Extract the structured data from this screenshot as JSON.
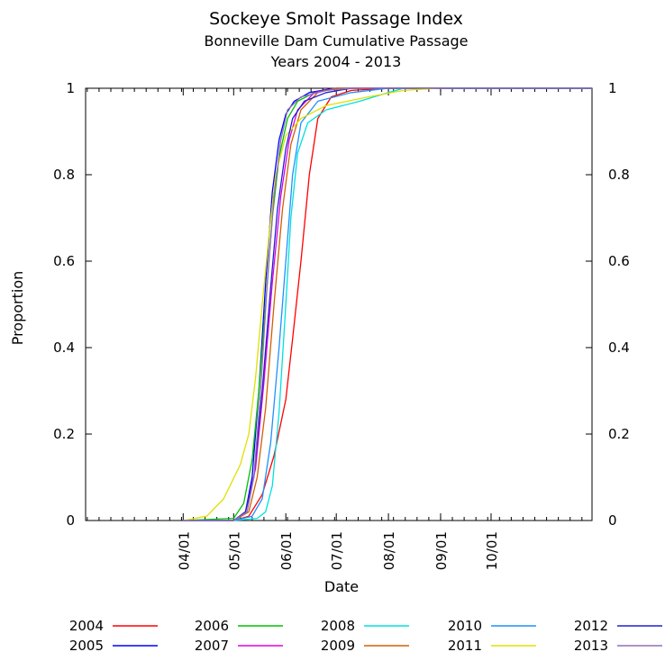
{
  "chart_data": {
    "type": "line",
    "title": "Sockeye Smolt Passage Index",
    "subtitle": "Bonneville Dam Cumulative Passage",
    "subtitle2": "Years 2004 - 2013",
    "xlabel": "Date",
    "ylabel": "Proportion",
    "x_unit": "date",
    "xlim": [
      "02-02",
      "11-30"
    ],
    "ylim": [
      0,
      1
    ],
    "x_ticks": [
      {
        "date": "04-01",
        "label": "04/01"
      },
      {
        "date": "05-01",
        "label": "05/01"
      },
      {
        "date": "06-01",
        "label": "06/01"
      },
      {
        "date": "07-01",
        "label": "07/01"
      },
      {
        "date": "08-01",
        "label": "08/01"
      },
      {
        "date": "09-01",
        "label": "09/01"
      },
      {
        "date": "10-01",
        "label": "10/01"
      }
    ],
    "y_ticks": [
      0,
      0.2,
      0.4,
      0.6,
      0.8,
      1
    ],
    "y_tick_labels": [
      "0",
      "0.2",
      "0.4",
      "0.6",
      "0.8",
      "1"
    ],
    "right_axis_ticks": true,
    "grid": false,
    "legend_position": "bottom",
    "series": [
      {
        "name": "2004",
        "color": "#ff0000",
        "points": [
          [
            "04-01",
            0
          ],
          [
            "05-01",
            0
          ],
          [
            "05-10",
            0.01
          ],
          [
            "05-18",
            0.06
          ],
          [
            "05-25",
            0.15
          ],
          [
            "06-01",
            0.28
          ],
          [
            "06-05",
            0.42
          ],
          [
            "06-10",
            0.6
          ],
          [
            "06-15",
            0.8
          ],
          [
            "06-20",
            0.93
          ],
          [
            "06-28",
            0.98
          ],
          [
            "07-10",
            0.995
          ],
          [
            "08-01",
            1
          ],
          [
            "11-30",
            1
          ]
        ]
      },
      {
        "name": "2005",
        "color": "#0000ff",
        "points": [
          [
            "04-01",
            0
          ],
          [
            "05-01",
            0
          ],
          [
            "05-08",
            0.02
          ],
          [
            "05-12",
            0.1
          ],
          [
            "05-16",
            0.3
          ],
          [
            "05-20",
            0.55
          ],
          [
            "05-24",
            0.76
          ],
          [
            "05-28",
            0.88
          ],
          [
            "06-01",
            0.94
          ],
          [
            "06-06",
            0.97
          ],
          [
            "06-15",
            0.99
          ],
          [
            "06-30",
            1
          ],
          [
            "11-30",
            1
          ]
        ]
      },
      {
        "name": "2006",
        "color": "#00c000",
        "points": [
          [
            "04-01",
            0
          ],
          [
            "05-01",
            0.005
          ],
          [
            "05-07",
            0.04
          ],
          [
            "05-12",
            0.14
          ],
          [
            "05-16",
            0.3
          ],
          [
            "05-20",
            0.5
          ],
          [
            "05-24",
            0.7
          ],
          [
            "05-28",
            0.84
          ],
          [
            "06-02",
            0.93
          ],
          [
            "06-08",
            0.97
          ],
          [
            "06-18",
            0.99
          ],
          [
            "07-01",
            1
          ],
          [
            "11-30",
            1
          ]
        ]
      },
      {
        "name": "2007",
        "color": "#e000e0",
        "points": [
          [
            "04-01",
            0
          ],
          [
            "05-01",
            0
          ],
          [
            "05-08",
            0.02
          ],
          [
            "05-14",
            0.12
          ],
          [
            "05-19",
            0.32
          ],
          [
            "05-24",
            0.55
          ],
          [
            "05-29",
            0.75
          ],
          [
            "06-03",
            0.88
          ],
          [
            "06-08",
            0.95
          ],
          [
            "06-18",
            0.99
          ],
          [
            "07-01",
            1
          ],
          [
            "11-30",
            1
          ]
        ]
      },
      {
        "name": "2008",
        "color": "#00e0e0",
        "points": [
          [
            "04-01",
            0
          ],
          [
            "05-01",
            0
          ],
          [
            "05-15",
            0.005
          ],
          [
            "05-20",
            0.02
          ],
          [
            "05-24",
            0.08
          ],
          [
            "05-28",
            0.25
          ],
          [
            "06-01",
            0.5
          ],
          [
            "06-04",
            0.7
          ],
          [
            "06-08",
            0.85
          ],
          [
            "06-14",
            0.92
          ],
          [
            "06-25",
            0.95
          ],
          [
            "07-15",
            0.97
          ],
          [
            "08-01",
            0.99
          ],
          [
            "08-10",
            1
          ],
          [
            "11-30",
            1
          ]
        ]
      },
      {
        "name": "2009",
        "color": "#d06000",
        "points": [
          [
            "04-01",
            0
          ],
          [
            "05-01",
            0
          ],
          [
            "05-10",
            0.02
          ],
          [
            "05-15",
            0.1
          ],
          [
            "05-20",
            0.26
          ],
          [
            "05-25",
            0.5
          ],
          [
            "05-30",
            0.72
          ],
          [
            "06-04",
            0.87
          ],
          [
            "06-10",
            0.95
          ],
          [
            "06-20",
            0.99
          ],
          [
            "07-01",
            1
          ],
          [
            "11-30",
            1
          ]
        ]
      },
      {
        "name": "2010",
        "color": "#1e90ff",
        "points": [
          [
            "04-01",
            0
          ],
          [
            "05-01",
            0
          ],
          [
            "05-12",
            0.01
          ],
          [
            "05-18",
            0.05
          ],
          [
            "05-23",
            0.18
          ],
          [
            "05-28",
            0.4
          ],
          [
            "06-01",
            0.6
          ],
          [
            "06-05",
            0.8
          ],
          [
            "06-10",
            0.92
          ],
          [
            "06-20",
            0.97
          ],
          [
            "07-10",
            0.99
          ],
          [
            "08-01",
            1
          ],
          [
            "11-30",
            1
          ]
        ]
      },
      {
        "name": "2011",
        "color": "#e0e000",
        "points": [
          [
            "04-01",
            0
          ],
          [
            "04-15",
            0.01
          ],
          [
            "04-25",
            0.05
          ],
          [
            "05-05",
            0.13
          ],
          [
            "05-10",
            0.2
          ],
          [
            "05-14",
            0.33
          ],
          [
            "05-18",
            0.5
          ],
          [
            "05-22",
            0.66
          ],
          [
            "05-26",
            0.8
          ],
          [
            "06-01",
            0.89
          ],
          [
            "06-10",
            0.93
          ],
          [
            "06-25",
            0.96
          ],
          [
            "07-20",
            0.98
          ],
          [
            "08-10",
            0.995
          ],
          [
            "08-31",
            1
          ]
        ]
      },
      {
        "name": "2012",
        "color": "#2020d0",
        "points": [
          [
            "04-01",
            0
          ],
          [
            "05-01",
            0
          ],
          [
            "05-08",
            0.02
          ],
          [
            "05-13",
            0.1
          ],
          [
            "05-18",
            0.3
          ],
          [
            "05-23",
            0.54
          ],
          [
            "05-27",
            0.72
          ],
          [
            "06-01",
            0.86
          ],
          [
            "06-05",
            0.93
          ],
          [
            "06-12",
            0.97
          ],
          [
            "06-25",
            0.99
          ],
          [
            "07-10",
            1
          ],
          [
            "11-30",
            1
          ]
        ]
      },
      {
        "name": "2013",
        "color": "#9070b0",
        "points": [
          [
            "04-01",
            0
          ],
          [
            "05-01",
            0
          ],
          [
            "05-09",
            0.02
          ],
          [
            "05-13",
            0.1
          ],
          [
            "05-17",
            0.3
          ],
          [
            "05-21",
            0.55
          ],
          [
            "05-25",
            0.75
          ],
          [
            "05-29",
            0.88
          ],
          [
            "06-02",
            0.95
          ],
          [
            "06-10",
            0.98
          ],
          [
            "06-25",
            0.995
          ],
          [
            "07-10",
            1
          ],
          [
            "11-30",
            1
          ]
        ]
      }
    ]
  }
}
